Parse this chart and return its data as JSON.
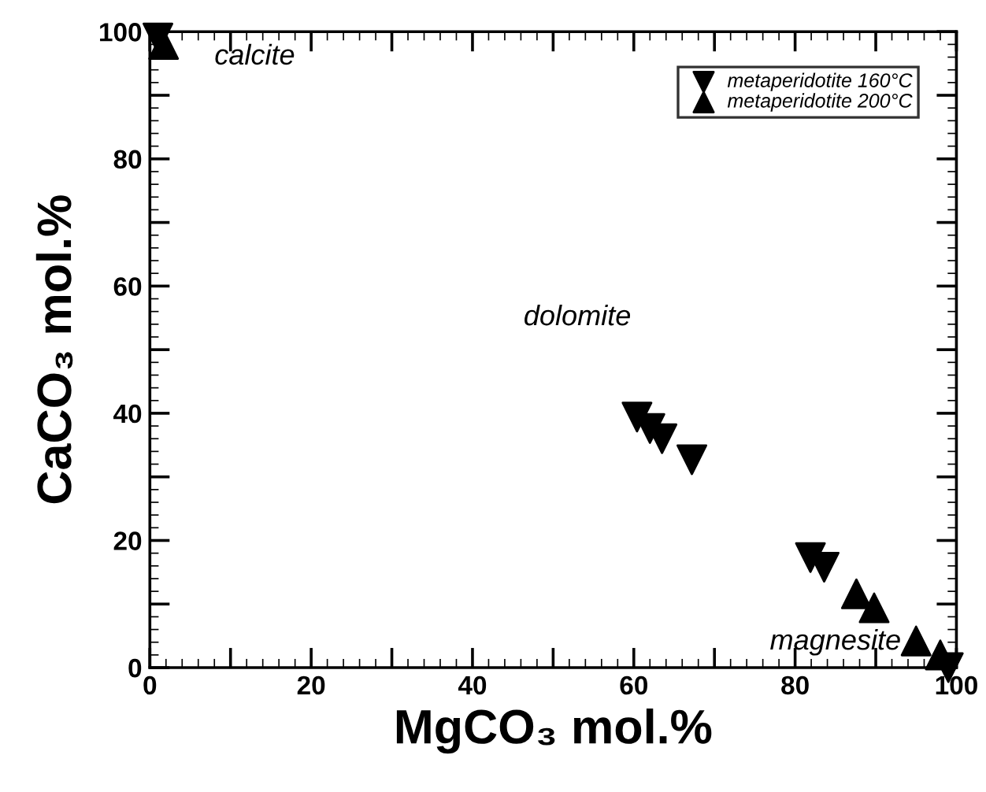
{
  "chart_data": {
    "type": "scatter",
    "xlabel": "MgCO₃ mol.%",
    "ylabel": "CaCO₃ mol.%",
    "xlim": [
      0,
      100
    ],
    "ylim": [
      0,
      100
    ],
    "xticks": [
      0,
      {
        "value": 10,
        "label": null
      },
      20,
      {
        "value": 30,
        "label": null
      },
      40,
      {
        "value": 50,
        "label": null
      },
      60,
      {
        "value": 70,
        "label": null
      },
      80,
      {
        "value": 90,
        "label": null
      },
      100
    ],
    "yticks": [
      0,
      {
        "value": 10,
        "label": null
      },
      20,
      {
        "value": 30,
        "label": null
      },
      40,
      {
        "value": 50,
        "label": null
      },
      60,
      {
        "value": 70,
        "label": null
      },
      80,
      {
        "value": 90,
        "label": null
      },
      100
    ],
    "legend": "top right",
    "grid": false,
    "series": [
      {
        "name": "metaperidotite 160°C",
        "color": "#000000",
        "marker": "triangle_down",
        "x": [
          1,
          60.4,
          62,
          63.5,
          67.2,
          81.9,
          83.6,
          99
        ],
        "values": [
          99,
          39.4,
          37.6,
          36,
          32.7,
          17.3,
          15.8,
          0
        ]
      },
      {
        "name": "metaperidotite 200°C",
        "color": "#000000",
        "marker": "triangle",
        "x": [
          1.7,
          87.6,
          89.8,
          95,
          98
        ],
        "values": [
          98,
          11.6,
          9.4,
          4.2,
          2
        ]
      }
    ],
    "annotations": [
      "calcite",
      "dolomite",
      "magnesite"
    ]
  }
}
